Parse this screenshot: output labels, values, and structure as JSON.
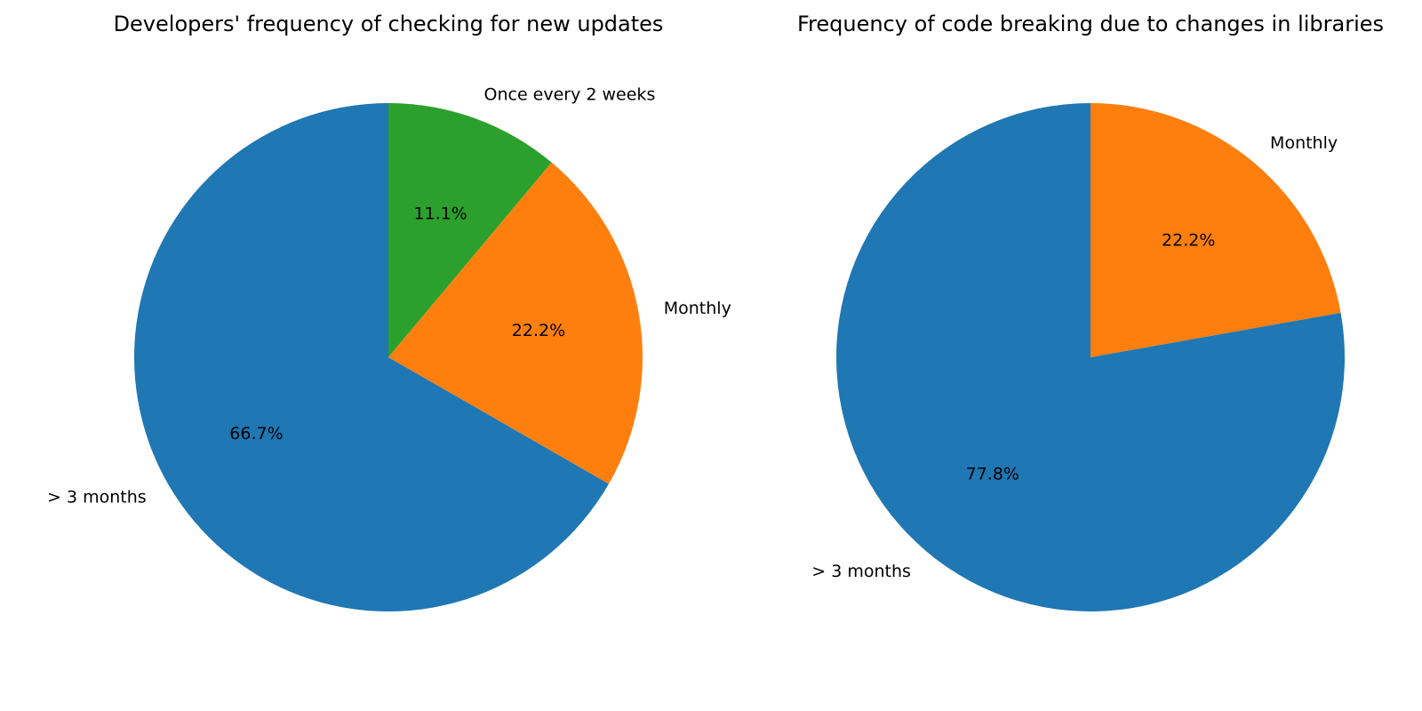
{
  "chart_data": [
    {
      "type": "pie",
      "title": "Developers' frequency of checking for new updates",
      "start_angle_deg": 90,
      "direction": "clockwise",
      "slices": [
        {
          "label": "Once every 2 weeks",
          "value": 11.1,
          "pct_label": "11.1%",
          "color": "#2ca02c"
        },
        {
          "label": "Monthly",
          "value": 22.2,
          "pct_label": "22.2%",
          "color": "#ff7f0e"
        },
        {
          "label": "> 3 months",
          "value": 66.7,
          "pct_label": "66.7%",
          "color": "#1f77b4"
        }
      ]
    },
    {
      "type": "pie",
      "title": "Frequency of code breaking due to changes in libraries",
      "start_angle_deg": 90,
      "direction": "clockwise",
      "slices": [
        {
          "label": "Monthly",
          "value": 22.2,
          "pct_label": "22.2%",
          "color": "#ff7f0e"
        },
        {
          "label": "> 3 months",
          "value": 77.8,
          "pct_label": "77.8%",
          "color": "#1f77b4"
        }
      ]
    }
  ]
}
